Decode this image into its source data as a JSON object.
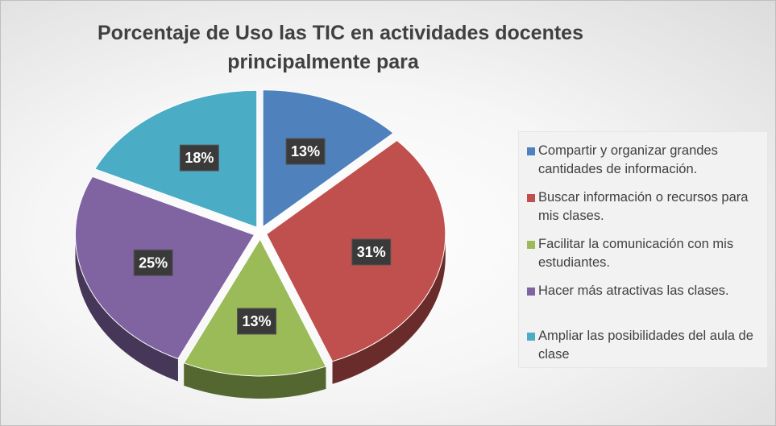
{
  "chart_data": {
    "type": "pie",
    "title_lines": [
      "Porcentaje de Uso las TIC en actividades docentes",
      "principalmente para"
    ],
    "slices": [
      {
        "label": "Compartir y organizar grandes cantidades de información.",
        "value": 13,
        "display": "13%",
        "color": "#4f81bd"
      },
      {
        "label": "Buscar información o recursos para mis clases.",
        "value": 31,
        "display": "31%",
        "color": "#c0504d"
      },
      {
        "label": "Facilitar la comunicación con mis estudiantes.",
        "value": 13,
        "display": "13%",
        "color": "#9bbb59"
      },
      {
        "label": "Hacer más atractivas las clases.",
        "value": 25,
        "display": "25%",
        "color": "#8064a2"
      },
      {
        "label": "Ampliar las posibilidades del aula de clase",
        "value": 18,
        "display": "18%",
        "color": "#4bacc6"
      }
    ],
    "legend_position": "right",
    "style": "3d-exploded"
  }
}
